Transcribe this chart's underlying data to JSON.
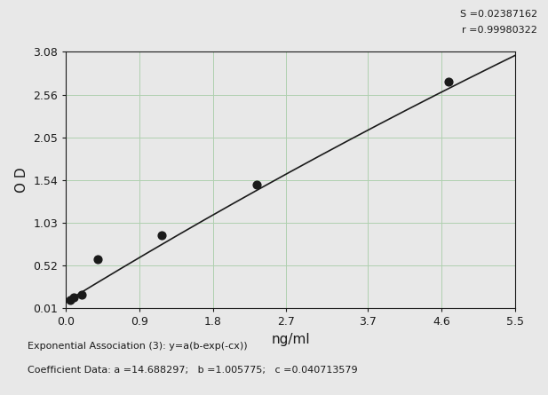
{
  "x_data": [
    0.049,
    0.098,
    0.195,
    0.39,
    1.17,
    2.34,
    4.69
  ],
  "y_data": [
    0.108,
    0.135,
    0.175,
    0.59,
    0.88,
    1.49,
    2.72
  ],
  "fit_a": 14.688297,
  "fit_b": 1.005775,
  "fit_c": 0.040713579,
  "S_value": "S =0.02387162",
  "r_value": "r =0.99980322",
  "xlabel": "ng/ml",
  "ylabel": "O D",
  "xlim": [
    0.0,
    5.5
  ],
  "ylim": [
    0.01,
    3.08
  ],
  "xtick_positions": [
    0.0,
    0.9,
    1.8,
    2.7,
    3.7,
    4.6,
    5.5
  ],
  "xtick_labels": [
    "0.0",
    "0.9",
    "1.8",
    "2.7",
    "3.7",
    "4.6",
    "5.5"
  ],
  "ytick_positions": [
    0.01,
    0.52,
    1.03,
    1.54,
    2.05,
    2.56,
    3.08
  ],
  "ytick_labels": [
    "0.01",
    "0.52",
    "1.03",
    "1.54",
    "2.05",
    "2.56",
    "3.08"
  ],
  "footer_line1": "Exponential Association (3): y=a(b-exp(-cx))",
  "footer_line2": "Coefficient Data: a =14.688297;   b =1.005775;   c =0.040713579",
  "background_color": "#e8e8e8",
  "plot_bg_color": "#e8e8e8",
  "grid_color": "#b0d0b0",
  "line_color": "#1a1a1a",
  "dot_color": "#1a1a1a",
  "text_color": "#1a1a1a",
  "dot_size": 40
}
